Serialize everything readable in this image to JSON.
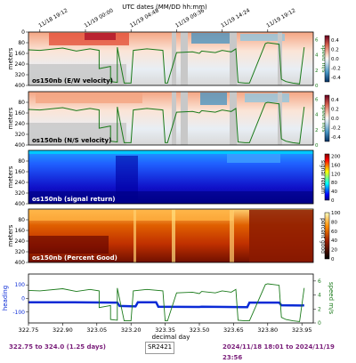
{
  "figure": {
    "top_axis_label": "UTC dates (MM/DD hh:mm)",
    "top_ticks": [
      "11/18 19:12",
      "11/19 00:00",
      "11/19 04:48",
      "11/19 09:36",
      "11/19 14:24",
      "11/19 19:12"
    ],
    "bottom_ticks": [
      "322.75",
      "322.90",
      "323.05",
      "323.20",
      "323.35",
      "323.50",
      "323.65",
      "323.80",
      "323.95"
    ],
    "bottom_axis_label": "decimal day",
    "footer_left": "322.75 to 324.0 (1.25 days)",
    "footer_center": "SR2421",
    "footer_right": "2024/11/18 18:01 to 2024/11/19 23:56",
    "colors": {
      "speed_line": "#1a7a1a",
      "heading_line": "#0b2bd6",
      "footer_text": "#7a1e7a",
      "no_data": "#c8c8c8"
    }
  },
  "chart_data": [
    {
      "type": "heatmap",
      "panel_label": "os150nb (E/W velocity)",
      "ylabel": "meters",
      "yticks": [
        "0",
        "80",
        "160",
        "240",
        "320",
        "400"
      ],
      "colorbar_ticks": [
        "0.4",
        "0.2",
        "0.0",
        "-0.2",
        "-0.4"
      ],
      "colorbar_range": [
        -0.5,
        0.5
      ],
      "colormap": "diverging-red-blue",
      "right_axis_label": "speed m/s",
      "right_ticks": [
        "6",
        "4",
        "2",
        "0"
      ]
    },
    {
      "type": "heatmap",
      "panel_label": "os150nb (N/S velocity)",
      "ylabel": "meters",
      "yticks": [
        "80",
        "160",
        "240",
        "320",
        "400"
      ],
      "colorbar_ticks": [
        "0.4",
        "0.2",
        "0.0",
        "-0.2",
        "-0.4"
      ],
      "colorbar_range": [
        -0.5,
        0.5
      ],
      "colormap": "diverging-red-blue",
      "right_axis_label": "speed m/s",
      "right_ticks": [
        "6",
        "4",
        "2",
        "0"
      ]
    },
    {
      "type": "heatmap",
      "panel_label": "os150nb (signal return)",
      "ylabel": "meters",
      "yticks": [
        "80",
        "160",
        "240",
        "320",
        "400"
      ],
      "colorbar_ticks": [
        "200",
        "160",
        "120",
        "80",
        "40",
        "0"
      ],
      "colorbar_range": [
        0,
        210
      ],
      "colormap": "jet",
      "right_axis_label": "signal return"
    },
    {
      "type": "heatmap",
      "panel_label": "os150nb (Percent Good)",
      "ylabel": "meters",
      "yticks": [
        "80",
        "160",
        "240",
        "320",
        "400"
      ],
      "colorbar_ticks": [
        "100",
        "80",
        "60",
        "40",
        "20",
        "0"
      ],
      "colorbar_range": [
        0,
        100
      ],
      "colormap": "afmhot",
      "right_axis_label": "percent good"
    },
    {
      "type": "line",
      "ylabel": "heading",
      "yticks": [
        "100",
        "0",
        "-100"
      ],
      "ylim": [
        -180,
        180
      ],
      "xlim": [
        322.75,
        324.0
      ],
      "right_axis_label": "speed m/s",
      "right_ticks": [
        "6",
        "4",
        "2",
        "0"
      ],
      "right_ylim": [
        0,
        7
      ],
      "series": [
        {
          "role": "heading",
          "x": [
            322.72,
            322.95,
            323.14,
            323.15,
            323.22,
            323.23,
            323.31,
            323.32,
            323.5,
            323.51,
            323.71,
            323.72,
            323.85,
            323.86,
            323.95,
            323.96
          ],
          "y": [
            -28,
            -28,
            -30,
            -55,
            -58,
            -28,
            -28,
            -60,
            -62,
            -60,
            -64,
            -30,
            -30,
            -50,
            -52,
            -50
          ]
        },
        {
          "role": "speed",
          "x": [
            322.72,
            322.8,
            322.9,
            322.96,
            323.02,
            323.06,
            323.06,
            323.11,
            323.11,
            323.14,
            323.14,
            323.17,
            323.19,
            323.2,
            323.21,
            323.27,
            323.34,
            323.35,
            323.36,
            323.4,
            323.47,
            323.5,
            323.51,
            323.57,
            323.6,
            323.64,
            323.66,
            323.67,
            323.7,
            323.72,
            323.79,
            323.8,
            323.85,
            323.86,
            323.88,
            323.91,
            323.94,
            323.96
          ],
          "y": [
            4.7,
            4.6,
            4.9,
            4.5,
            4.8,
            4.6,
            2.2,
            2.5,
            0.5,
            0.4,
            5.0,
            0.3,
            0.3,
            0.3,
            4.6,
            4.8,
            4.6,
            0.3,
            0.3,
            4.3,
            4.4,
            4.2,
            4.5,
            4.3,
            4.6,
            4.4,
            4.8,
            0.4,
            0.3,
            0.3,
            5.5,
            5.6,
            5.4,
            0.8,
            0.5,
            0.3,
            0.2,
            5.0
          ]
        }
      ]
    }
  ]
}
